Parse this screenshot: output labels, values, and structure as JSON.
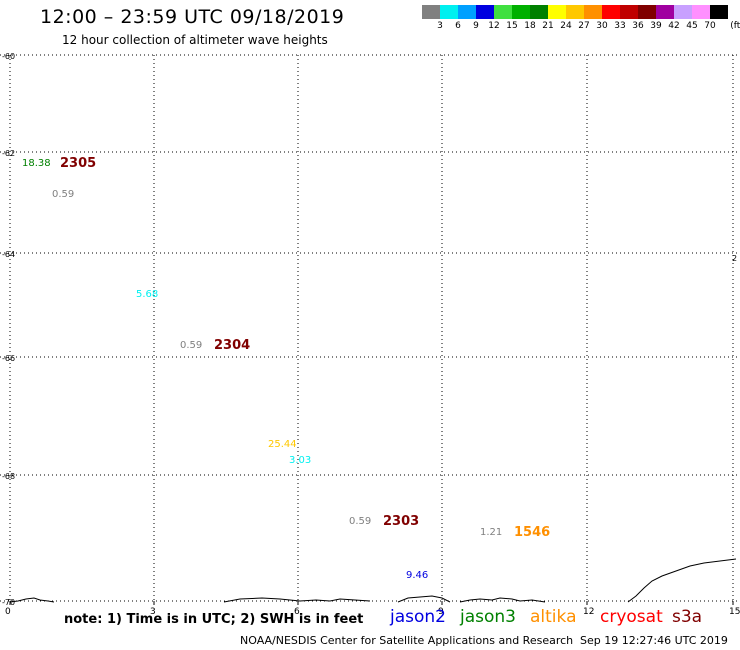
{
  "header": {
    "title": "12:00 – 23:59 UTC 09/18/2019",
    "subtitle": "12 hour collection of altimeter wave heights"
  },
  "legend": {
    "unit": "(ft)",
    "bins": [
      {
        "label": "3",
        "color": "#808080"
      },
      {
        "label": "6",
        "color": "#00f0f0"
      },
      {
        "label": "9",
        "color": "#00a0ff"
      },
      {
        "label": "12",
        "color": "#0000e0"
      },
      {
        "label": "15",
        "color": "#40e040"
      },
      {
        "label": "18",
        "color": "#00b000"
      },
      {
        "label": "21",
        "color": "#008000"
      },
      {
        "label": "24",
        "color": "#ffff00"
      },
      {
        "label": "27",
        "color": "#ffc800"
      },
      {
        "label": "30",
        "color": "#ff9000"
      },
      {
        "label": "33",
        "color": "#ff0000"
      },
      {
        "label": "36",
        "color": "#c00000"
      },
      {
        "label": "39",
        "color": "#800000"
      },
      {
        "label": "42",
        "color": "#a000a0"
      },
      {
        "label": "45",
        "color": "#c8a0ff"
      },
      {
        "label": "70",
        "color": "#ff90ff"
      },
      {
        "label": "",
        "color": "#000000"
      }
    ]
  },
  "axes": {
    "lat_ticks": [
      "-60",
      "-62",
      "-64",
      "-66",
      "-68",
      "-70"
    ],
    "lon_ticks": [
      "0",
      "3",
      "6",
      "9",
      "12",
      "15"
    ],
    "right_edge_label": "2"
  },
  "observations": [
    {
      "text": "18.38",
      "color": "#008000",
      "kind": "obs"
    },
    {
      "text": "2305",
      "color": "#800000",
      "kind": "cycle"
    },
    {
      "text": "0.59",
      "color": "#808080",
      "kind": "obs"
    },
    {
      "text": "5.68",
      "color": "#00f0f0",
      "kind": "obs"
    },
    {
      "text": "0.59",
      "color": "#808080",
      "kind": "obs"
    },
    {
      "text": "2304",
      "color": "#800000",
      "kind": "cycle"
    },
    {
      "text": "25.44",
      "color": "#ffc800",
      "kind": "obs"
    },
    {
      "text": "3.03",
      "color": "#00f0f0",
      "kind": "obs"
    },
    {
      "text": "0.59",
      "color": "#808080",
      "kind": "obs"
    },
    {
      "text": "2303",
      "color": "#800000",
      "kind": "cycle"
    },
    {
      "text": "1.21",
      "color": "#808080",
      "kind": "obs"
    },
    {
      "text": "1546",
      "color": "#ff9000",
      "kind": "cycle"
    },
    {
      "text": "9.46",
      "color": "#0000e0",
      "kind": "obs"
    }
  ],
  "footer": {
    "note": "note: 1) Time is in UTC; 2) SWH is in feet",
    "satellites": [
      {
        "name": "jason2",
        "color": "#0000e0"
      },
      {
        "name": "jason3",
        "color": "#008000"
      },
      {
        "name": "altika",
        "color": "#ff9000"
      },
      {
        "name": "cryosat",
        "color": "#ff0000"
      },
      {
        "name": "s3a",
        "color": "#800000"
      }
    ],
    "credit": "NOAA/NESDIS Center for Satellite Applications and Research",
    "timestamp": "Sep 19 12:27:46 UTC 2019"
  }
}
